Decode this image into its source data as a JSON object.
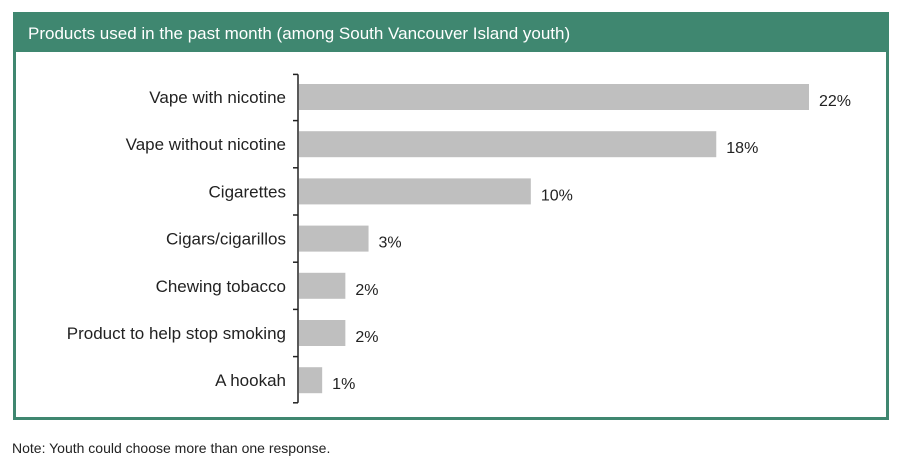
{
  "chart_data": {
    "type": "bar",
    "orientation": "horizontal",
    "title": "Products used in the past month (among South Vancouver Island youth)",
    "categories": [
      "Vape with nicotine",
      "Vape without nicotine",
      "Cigarettes",
      "Cigars/cigarillos",
      "Chewing tobacco",
      "Product to help stop smoking",
      "A hookah"
    ],
    "values": [
      22,
      18,
      10,
      3,
      2,
      2,
      1
    ],
    "value_labels": [
      "22%",
      "18%",
      "10%",
      "3%",
      "2%",
      "2%",
      "1%"
    ],
    "xlim": [
      0,
      22
    ],
    "grid": false,
    "bar_color": "#bfbfbf"
  },
  "note": "Note: Youth could choose more than one response.",
  "colors": {
    "frame": "#3f8770",
    "header_text": "#ffffff",
    "bar": "#bfbfbf"
  }
}
